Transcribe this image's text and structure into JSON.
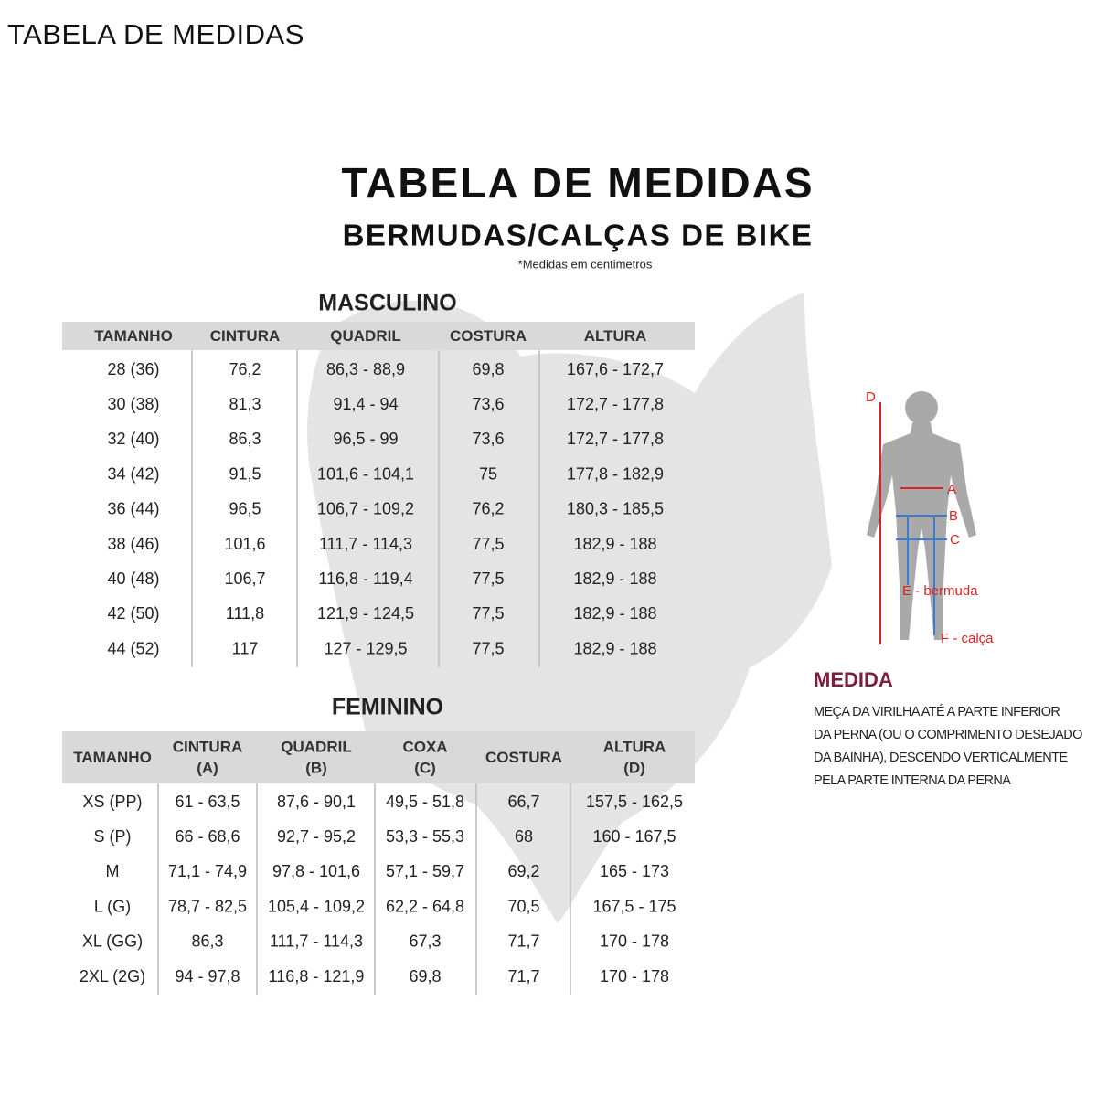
{
  "header": {
    "title": "TABELA DE MEDIDAS"
  },
  "title": "TABELA DE MEDIDAS",
  "subtitle": "BERMUDAS/CALÇAS DE BIKE",
  "note": "*Medidas em centimetros",
  "masculino": {
    "title": "MASCULINO",
    "headers": [
      [
        "TAMANHO"
      ],
      [
        "CINTURA"
      ],
      [
        "QUADRIL"
      ],
      [
        "COSTURA"
      ],
      [
        "ALTURA"
      ]
    ],
    "rows": [
      [
        "28 (36)",
        "76,2",
        "86,3 - 88,9",
        "69,8",
        "167,6 - 172,7"
      ],
      [
        "30 (38)",
        "81,3",
        "91,4 - 94",
        "73,6",
        "172,7 - 177,8"
      ],
      [
        "32 (40)",
        "86,3",
        "96,5 - 99",
        "73,6",
        "172,7 - 177,8"
      ],
      [
        "34 (42)",
        "91,5",
        "101,6 - 104,1",
        "75",
        "177,8 - 182,9"
      ],
      [
        "36 (44)",
        "96,5",
        "106,7 - 109,2",
        "76,2",
        "180,3 - 185,5"
      ],
      [
        "38 (46)",
        "101,6",
        "111,7 - 114,3",
        "77,5",
        "182,9 - 188"
      ],
      [
        "40 (48)",
        "106,7",
        "116,8 - 119,4",
        "77,5",
        "182,9 - 188"
      ],
      [
        "42 (50)",
        "111,8",
        "121,9 - 124,5",
        "77,5",
        "182,9 - 188"
      ],
      [
        "44 (52)",
        "117",
        "127 - 129,5",
        "77,5",
        "182,9 - 188"
      ]
    ]
  },
  "feminino": {
    "title": "FEMININO",
    "headers": [
      [
        "TAMANHO"
      ],
      [
        "CINTURA",
        "(A)"
      ],
      [
        "QUADRIL",
        "(B)"
      ],
      [
        "COXA",
        "(C)"
      ],
      [
        "COSTURA"
      ],
      [
        "ALTURA",
        "(D)"
      ]
    ],
    "rows": [
      [
        "XS (PP)",
        "61 - 63,5",
        "87,6 - 90,1",
        "49,5 - 51,8",
        "66,7",
        "157,5 - 162,5"
      ],
      [
        "S (P)",
        "66 - 68,6",
        "92,7 - 95,2",
        "53,3 - 55,3",
        "68",
        "160 - 167,5"
      ],
      [
        "M",
        "71,1 - 74,9",
        "97,8 - 101,6",
        "57,1 - 59,7",
        "69,2",
        "165 - 173"
      ],
      [
        "L (G)",
        "78,7 - 82,5",
        "105,4 - 109,2",
        "62,2 - 64,8",
        "70,5",
        "167,5 - 175"
      ],
      [
        "XL (GG)",
        "86,3",
        "111,7 - 114,3",
        "67,3",
        "71,7",
        "170 - 178"
      ],
      [
        "2XL (2G)",
        "94 - 97,8",
        "116,8 - 121,9",
        "69,8",
        "71,7",
        "170 - 178"
      ]
    ]
  },
  "diagram": {
    "labels": [
      "D",
      "A",
      "B",
      "C",
      "E - bermuda",
      "F - calça"
    ]
  },
  "medida": {
    "title": "MEDIDA",
    "lines": [
      "MEÇA DA VIRILHA ATÉ A PARTE INFERIOR",
      "DA PERNA (OU O COMPRIMENTO DESEJADO",
      "DA BAINHA), DESCENDO VERTICALMENTE",
      "PELA PARTE INTERNA DA PERNA"
    ]
  }
}
